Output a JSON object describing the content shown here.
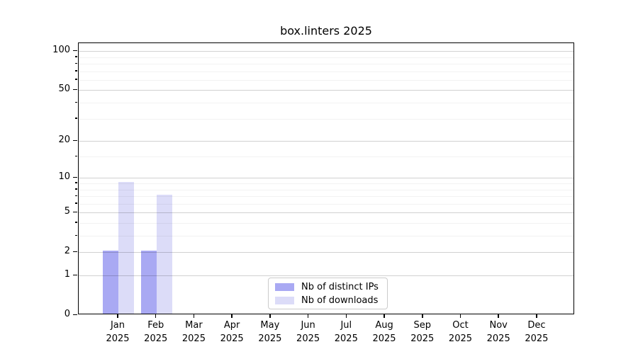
{
  "chart_data": {
    "type": "bar",
    "title": "box.linters 2025",
    "categories": [
      "Jan",
      "Feb",
      "Mar",
      "Apr",
      "May",
      "Jun",
      "Jul",
      "Aug",
      "Sep",
      "Oct",
      "Nov",
      "Dec"
    ],
    "year_label": "2025",
    "series": [
      {
        "name": "Nb of distinct IPs",
        "color": "#a9a9f3",
        "values": [
          2,
          2,
          0,
          0,
          0,
          0,
          0,
          0,
          0,
          0,
          0,
          0
        ]
      },
      {
        "name": "Nb of downloads",
        "color": "#dcdcf8",
        "values": [
          9,
          7,
          0,
          0,
          0,
          0,
          0,
          0,
          0,
          0,
          0,
          0
        ]
      }
    ],
    "y_scale": "log10(1+x)",
    "y_major_ticks": [
      0,
      1,
      2,
      5,
      10,
      20,
      50,
      100
    ],
    "y_minor_ticks": [
      3,
      4,
      6,
      7,
      8,
      9,
      15,
      30,
      40,
      60,
      70,
      80,
      90
    ],
    "ylim": [
      0,
      115
    ],
    "xlabel": "",
    "ylabel": "",
    "grid": "both",
    "legend_position": "lower center",
    "colors": {
      "background": "#ffffff",
      "axis": "#000000",
      "grid_major": "#d2d2d2",
      "grid_minor": "#f2f2f2"
    }
  }
}
